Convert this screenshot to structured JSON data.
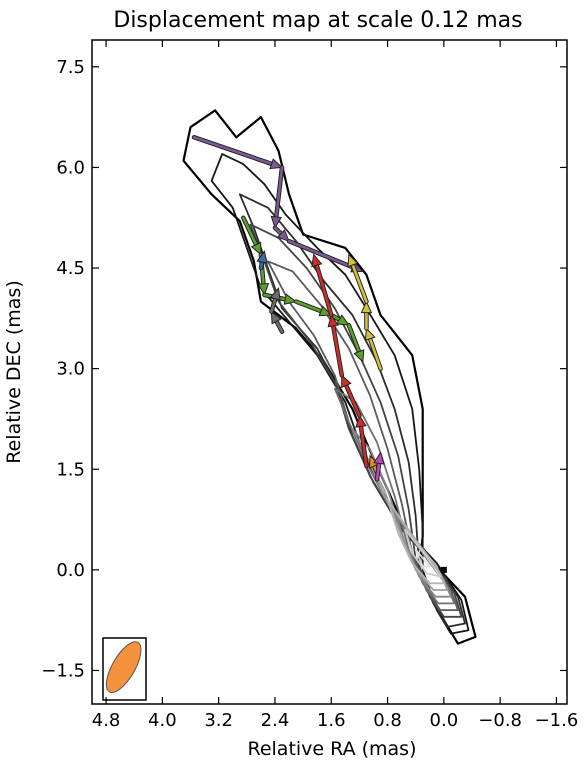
{
  "chart_data": {
    "type": "contour",
    "title": "Displacement map at scale 0.12 mas",
    "xlabel": "Relative RA (mas)",
    "ylabel": "Relative DEC (mas)",
    "x_inverted": true,
    "xlim": [
      5.0,
      -1.75
    ],
    "ylim": [
      -2.0,
      7.9
    ],
    "xticks": [
      4.8,
      4.0,
      3.2,
      2.4,
      1.6,
      0.8,
      0.0,
      -0.8,
      -1.6
    ],
    "xtick_labels": [
      "4.8",
      "4.0",
      "3.2",
      "2.4",
      "1.6",
      "0.8",
      "0.0",
      "−0.8",
      "−1.6"
    ],
    "yticks": [
      -1.5,
      0.0,
      1.5,
      3.0,
      4.5,
      6.0,
      7.5
    ],
    "ytick_labels": [
      "−1.5",
      "0.0",
      "1.5",
      "3.0",
      "4.5",
      "6.0",
      "7.5"
    ],
    "grid": false,
    "beam": {
      "x": 4.55,
      "y": -1.45,
      "major": 0.85,
      "minor": 0.32,
      "pa_deg": 30,
      "color": "#f5923e"
    },
    "contours": [
      {
        "level": 1,
        "points": [
          [
            3.25,
            6.85
          ],
          [
            3.6,
            6.6
          ],
          [
            3.7,
            6.1
          ],
          [
            3.3,
            5.6
          ],
          [
            2.9,
            5.2
          ],
          [
            2.7,
            4.6
          ],
          [
            2.6,
            4.0
          ],
          [
            2.1,
            3.6
          ],
          [
            1.7,
            3.1
          ],
          [
            1.3,
            2.4
          ],
          [
            1.1,
            1.9
          ],
          [
            0.8,
            1.2
          ],
          [
            0.55,
            0.6
          ],
          [
            0.15,
            0.1
          ],
          [
            -0.3,
            -0.4
          ],
          [
            -0.45,
            -1.0
          ],
          [
            -0.2,
            -1.1
          ],
          [
            0.0,
            -0.75
          ],
          [
            0.35,
            0.0
          ],
          [
            0.3,
            0.5
          ],
          [
            0.3,
            1.4
          ],
          [
            0.3,
            2.4
          ],
          [
            0.45,
            3.2
          ],
          [
            0.9,
            3.8
          ],
          [
            1.1,
            4.4
          ],
          [
            1.4,
            4.8
          ],
          [
            2.0,
            5.0
          ],
          [
            2.2,
            5.6
          ],
          [
            2.35,
            6.25
          ],
          [
            2.6,
            6.75
          ],
          [
            2.95,
            6.45
          ],
          [
            3.25,
            6.85
          ]
        ]
      },
      {
        "level": 2,
        "points": [
          [
            3.15,
            6.2
          ],
          [
            3.3,
            5.8
          ],
          [
            3.0,
            5.4
          ],
          [
            2.8,
            4.8
          ],
          [
            2.6,
            4.2
          ],
          [
            2.2,
            3.7
          ],
          [
            1.8,
            3.2
          ],
          [
            1.4,
            2.5
          ],
          [
            1.2,
            1.9
          ],
          [
            0.9,
            1.2
          ],
          [
            0.5,
            0.55
          ],
          [
            0.1,
            0.1
          ],
          [
            -0.25,
            -0.45
          ],
          [
            -0.35,
            -0.9
          ],
          [
            -0.1,
            -0.95
          ],
          [
            0.1,
            -0.6
          ],
          [
            0.3,
            0.0
          ],
          [
            0.3,
            0.6
          ],
          [
            0.35,
            1.5
          ],
          [
            0.45,
            2.4
          ],
          [
            0.7,
            3.2
          ],
          [
            1.1,
            3.9
          ],
          [
            1.4,
            4.4
          ],
          [
            1.8,
            4.8
          ],
          [
            2.25,
            5.3
          ],
          [
            2.55,
            5.75
          ],
          [
            2.85,
            6.05
          ],
          [
            3.15,
            6.2
          ]
        ]
      },
      {
        "level": 3,
        "points": [
          [
            2.9,
            5.6
          ],
          [
            2.7,
            5.1
          ],
          [
            2.5,
            4.5
          ],
          [
            2.3,
            3.9
          ],
          [
            1.8,
            3.3
          ],
          [
            1.5,
            2.7
          ],
          [
            1.3,
            2.0
          ],
          [
            1.0,
            1.3
          ],
          [
            0.6,
            0.6
          ],
          [
            0.15,
            0.1
          ],
          [
            -0.2,
            -0.4
          ],
          [
            -0.3,
            -0.8
          ],
          [
            -0.05,
            -0.85
          ],
          [
            0.15,
            -0.5
          ],
          [
            0.35,
            0.05
          ],
          [
            0.4,
            0.8
          ],
          [
            0.5,
            1.6
          ],
          [
            0.7,
            2.4
          ],
          [
            0.95,
            3.1
          ],
          [
            1.3,
            3.8
          ],
          [
            1.7,
            4.3
          ],
          [
            2.1,
            4.9
          ],
          [
            2.5,
            5.4
          ],
          [
            2.9,
            5.6
          ]
        ]
      },
      {
        "level": 4,
        "points": [
          [
            2.75,
            5.15
          ],
          [
            2.55,
            4.6
          ],
          [
            2.35,
            4.0
          ],
          [
            1.9,
            3.4
          ],
          [
            1.55,
            2.8
          ],
          [
            1.35,
            2.1
          ],
          [
            1.05,
            1.4
          ],
          [
            0.65,
            0.7
          ],
          [
            0.2,
            0.15
          ],
          [
            -0.15,
            -0.35
          ],
          [
            -0.25,
            -0.7
          ],
          [
            0.0,
            -0.7
          ],
          [
            0.2,
            -0.4
          ],
          [
            0.4,
            0.15
          ],
          [
            0.5,
            0.9
          ],
          [
            0.65,
            1.7
          ],
          [
            0.9,
            2.5
          ],
          [
            1.2,
            3.2
          ],
          [
            1.55,
            3.9
          ],
          [
            1.95,
            4.5
          ],
          [
            2.35,
            4.95
          ],
          [
            2.75,
            5.15
          ]
        ]
      },
      {
        "level": 5,
        "points": [
          [
            2.5,
            4.6
          ],
          [
            2.2,
            4.0
          ],
          [
            1.85,
            3.5
          ],
          [
            1.55,
            2.9
          ],
          [
            1.35,
            2.2
          ],
          [
            1.05,
            1.5
          ],
          [
            0.7,
            0.8
          ],
          [
            0.25,
            0.2
          ],
          [
            -0.1,
            -0.3
          ],
          [
            -0.2,
            -0.6
          ],
          [
            0.05,
            -0.6
          ],
          [
            0.25,
            -0.3
          ],
          [
            0.45,
            0.25
          ],
          [
            0.6,
            1.0
          ],
          [
            0.8,
            1.8
          ],
          [
            1.05,
            2.6
          ],
          [
            1.35,
            3.3
          ],
          [
            1.75,
            3.95
          ],
          [
            2.15,
            4.45
          ],
          [
            2.5,
            4.6
          ]
        ]
      },
      {
        "level": 6,
        "points": [
          [
            1.55,
            2.7
          ],
          [
            1.35,
            2.2
          ],
          [
            1.1,
            1.6
          ],
          [
            0.75,
            0.9
          ],
          [
            0.3,
            0.25
          ],
          [
            -0.05,
            -0.25
          ],
          [
            -0.15,
            -0.5
          ],
          [
            0.08,
            -0.5
          ],
          [
            0.3,
            -0.2
          ],
          [
            0.5,
            0.3
          ],
          [
            0.7,
            1.1
          ],
          [
            0.95,
            1.9
          ],
          [
            1.25,
            2.5
          ],
          [
            1.55,
            2.7
          ]
        ]
      },
      {
        "level": 7,
        "points": [
          [
            1.3,
            2.1
          ],
          [
            1.1,
            1.7
          ],
          [
            0.8,
            1.0
          ],
          [
            0.35,
            0.35
          ],
          [
            0.0,
            -0.15
          ],
          [
            -0.1,
            -0.4
          ],
          [
            0.12,
            -0.4
          ],
          [
            0.35,
            -0.1
          ],
          [
            0.55,
            0.4
          ],
          [
            0.8,
            1.2
          ],
          [
            1.05,
            1.8
          ],
          [
            1.3,
            2.1
          ]
        ]
      },
      {
        "level": 8,
        "points": [
          [
            1.05,
            1.6
          ],
          [
            0.85,
            1.1
          ],
          [
            0.4,
            0.45
          ],
          [
            0.05,
            -0.05
          ],
          [
            -0.05,
            -0.3
          ],
          [
            0.15,
            -0.3
          ],
          [
            0.4,
            0.0
          ],
          [
            0.6,
            0.5
          ],
          [
            0.85,
            1.2
          ],
          [
            1.05,
            1.6
          ]
        ]
      },
      {
        "level": 9,
        "points": [
          [
            0.8,
            1.05
          ],
          [
            0.45,
            0.5
          ],
          [
            0.1,
            0.05
          ],
          [
            0.0,
            -0.2
          ],
          [
            0.2,
            -0.2
          ],
          [
            0.45,
            0.1
          ],
          [
            0.65,
            0.55
          ],
          [
            0.8,
            1.05
          ]
        ]
      },
      {
        "level": 10,
        "points": [
          [
            0.55,
            0.6
          ],
          [
            0.25,
            0.2
          ],
          [
            0.05,
            -0.1
          ],
          [
            0.25,
            -0.05
          ],
          [
            0.45,
            0.25
          ],
          [
            0.55,
            0.6
          ]
        ]
      },
      {
        "level": 11,
        "points": [
          [
            0.4,
            0.3
          ],
          [
            0.2,
            0.05
          ],
          [
            0.3,
            0.05
          ],
          [
            0.4,
            0.3
          ]
        ]
      }
    ],
    "series": [
      {
        "color": "#7b5a8f",
        "points": [
          [
            3.55,
            6.45
          ],
          [
            2.3,
            6.0
          ],
          [
            2.4,
            5.1
          ],
          [
            2.2,
            4.9
          ],
          [
            1.15,
            4.45
          ]
        ]
      },
      {
        "color": "#5aa02c",
        "points": [
          [
            2.85,
            5.25
          ],
          [
            2.6,
            4.7
          ],
          [
            2.55,
            4.1
          ],
          [
            2.1,
            4.0
          ],
          [
            1.6,
            3.8
          ],
          [
            1.35,
            3.65
          ],
          [
            1.15,
            3.1
          ]
        ]
      },
      {
        "color": "#d4c13a",
        "points": [
          [
            0.9,
            3.0
          ],
          [
            1.1,
            3.6
          ],
          [
            1.1,
            4.0
          ],
          [
            1.35,
            4.7
          ]
        ]
      },
      {
        "color": "#c9302c",
        "points": [
          [
            1.1,
            1.55
          ],
          [
            1.2,
            2.3
          ],
          [
            1.45,
            2.9
          ],
          [
            1.6,
            3.8
          ],
          [
            1.85,
            4.7
          ]
        ]
      },
      {
        "color": "#6e6e6e",
        "points": [
          [
            2.3,
            3.55
          ],
          [
            2.45,
            3.85
          ],
          [
            2.35,
            4.2
          ]
        ]
      },
      {
        "color": "#3a6ea5",
        "points": [
          [
            2.6,
            4.5
          ],
          [
            2.55,
            4.75
          ]
        ]
      },
      {
        "color": "#f08a24",
        "points": [
          [
            0.95,
            1.45
          ],
          [
            1.05,
            1.7
          ]
        ]
      },
      {
        "color": "#c243c2",
        "points": [
          [
            0.95,
            1.35
          ],
          [
            0.9,
            1.75
          ]
        ]
      }
    ],
    "core_marker": {
      "x": 0.0,
      "y": 0.0
    }
  }
}
